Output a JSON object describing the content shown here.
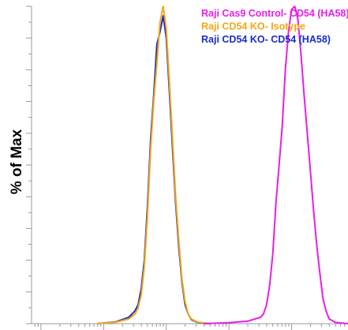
{
  "chart_data": {
    "type": "line",
    "title": "",
    "xlabel": "",
    "ylabel": "% of Max",
    "xscale": "log",
    "xlim": [
      -0.15,
      4.9
    ],
    "ylim": [
      0,
      100
    ],
    "grid": false,
    "legend_position": "top-right",
    "series": [
      {
        "name": "Raji Cas9 Control- CD54 (HA58)",
        "color": "#e81ee8",
        "x": [
          2.6,
          3.0,
          3.3,
          3.5,
          3.55,
          3.6,
          3.65,
          3.7,
          3.75,
          3.8,
          3.85,
          3.9,
          3.95,
          4.0,
          4.05,
          4.1,
          4.15,
          4.2,
          4.25,
          4.3,
          4.35,
          4.4,
          4.45,
          4.5,
          4.55,
          4.6,
          4.7,
          4.9
        ],
        "y": [
          0,
          0.3,
          0.8,
          2,
          3,
          6,
          12,
          22,
          38,
          50,
          62,
          80,
          92,
          99,
          100,
          96,
          85,
          72,
          60,
          48,
          36,
          25,
          16,
          8,
          4,
          1.5,
          0.4,
          0
        ]
      },
      {
        "name": "Raji CD54 KO- Isotype",
        "color": "#f0a818",
        "x": [
          0.9,
          1.2,
          1.4,
          1.5,
          1.55,
          1.6,
          1.65,
          1.7,
          1.75,
          1.8,
          1.85,
          1.9,
          1.95,
          2.0,
          2.05,
          2.1,
          2.15,
          2.2,
          2.25,
          2.3,
          2.35,
          2.4,
          2.5,
          2.7
        ],
        "y": [
          0,
          0.5,
          1.5,
          3,
          5,
          9,
          18,
          34,
          55,
          70,
          82,
          95,
          100,
          93,
          76,
          58,
          40,
          26,
          14,
          7,
          3,
          1.5,
          0.5,
          0
        ]
      },
      {
        "name": "Raji CD54 KO- CD54 (HA58)",
        "color": "#1a2ec8",
        "x": [
          0.9,
          1.2,
          1.4,
          1.5,
          1.55,
          1.6,
          1.65,
          1.7,
          1.75,
          1.8,
          1.85,
          1.9,
          1.95,
          2.0,
          2.05,
          2.1,
          2.15,
          2.2,
          2.25,
          2.3,
          2.35,
          2.4,
          2.5,
          2.7
        ],
        "y": [
          0,
          0.6,
          2,
          4,
          6,
          11,
          20,
          37,
          58,
          72,
          88,
          92,
          97,
          90,
          73,
          55,
          38,
          24,
          13,
          6,
          3,
          1.3,
          0.4,
          0
        ]
      }
    ]
  }
}
